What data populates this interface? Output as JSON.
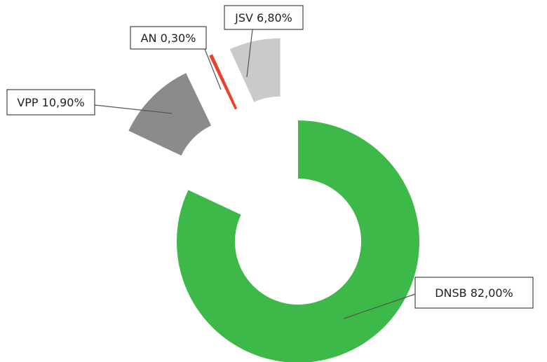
{
  "chart_data": {
    "type": "donut",
    "categories": [
      "DNSB",
      "VPP",
      "AN",
      "JSV"
    ],
    "values": [
      82.0,
      10.9,
      0.3,
      6.8
    ],
    "value_labels": [
      "82,00%",
      "10,90%",
      "0,30%",
      "6,80%"
    ],
    "colors": [
      "#3db94a",
      "#8b8b8b",
      "#e8432c",
      "#c9cacb"
    ],
    "exploded": [
      false,
      true,
      true,
      true
    ]
  }
}
